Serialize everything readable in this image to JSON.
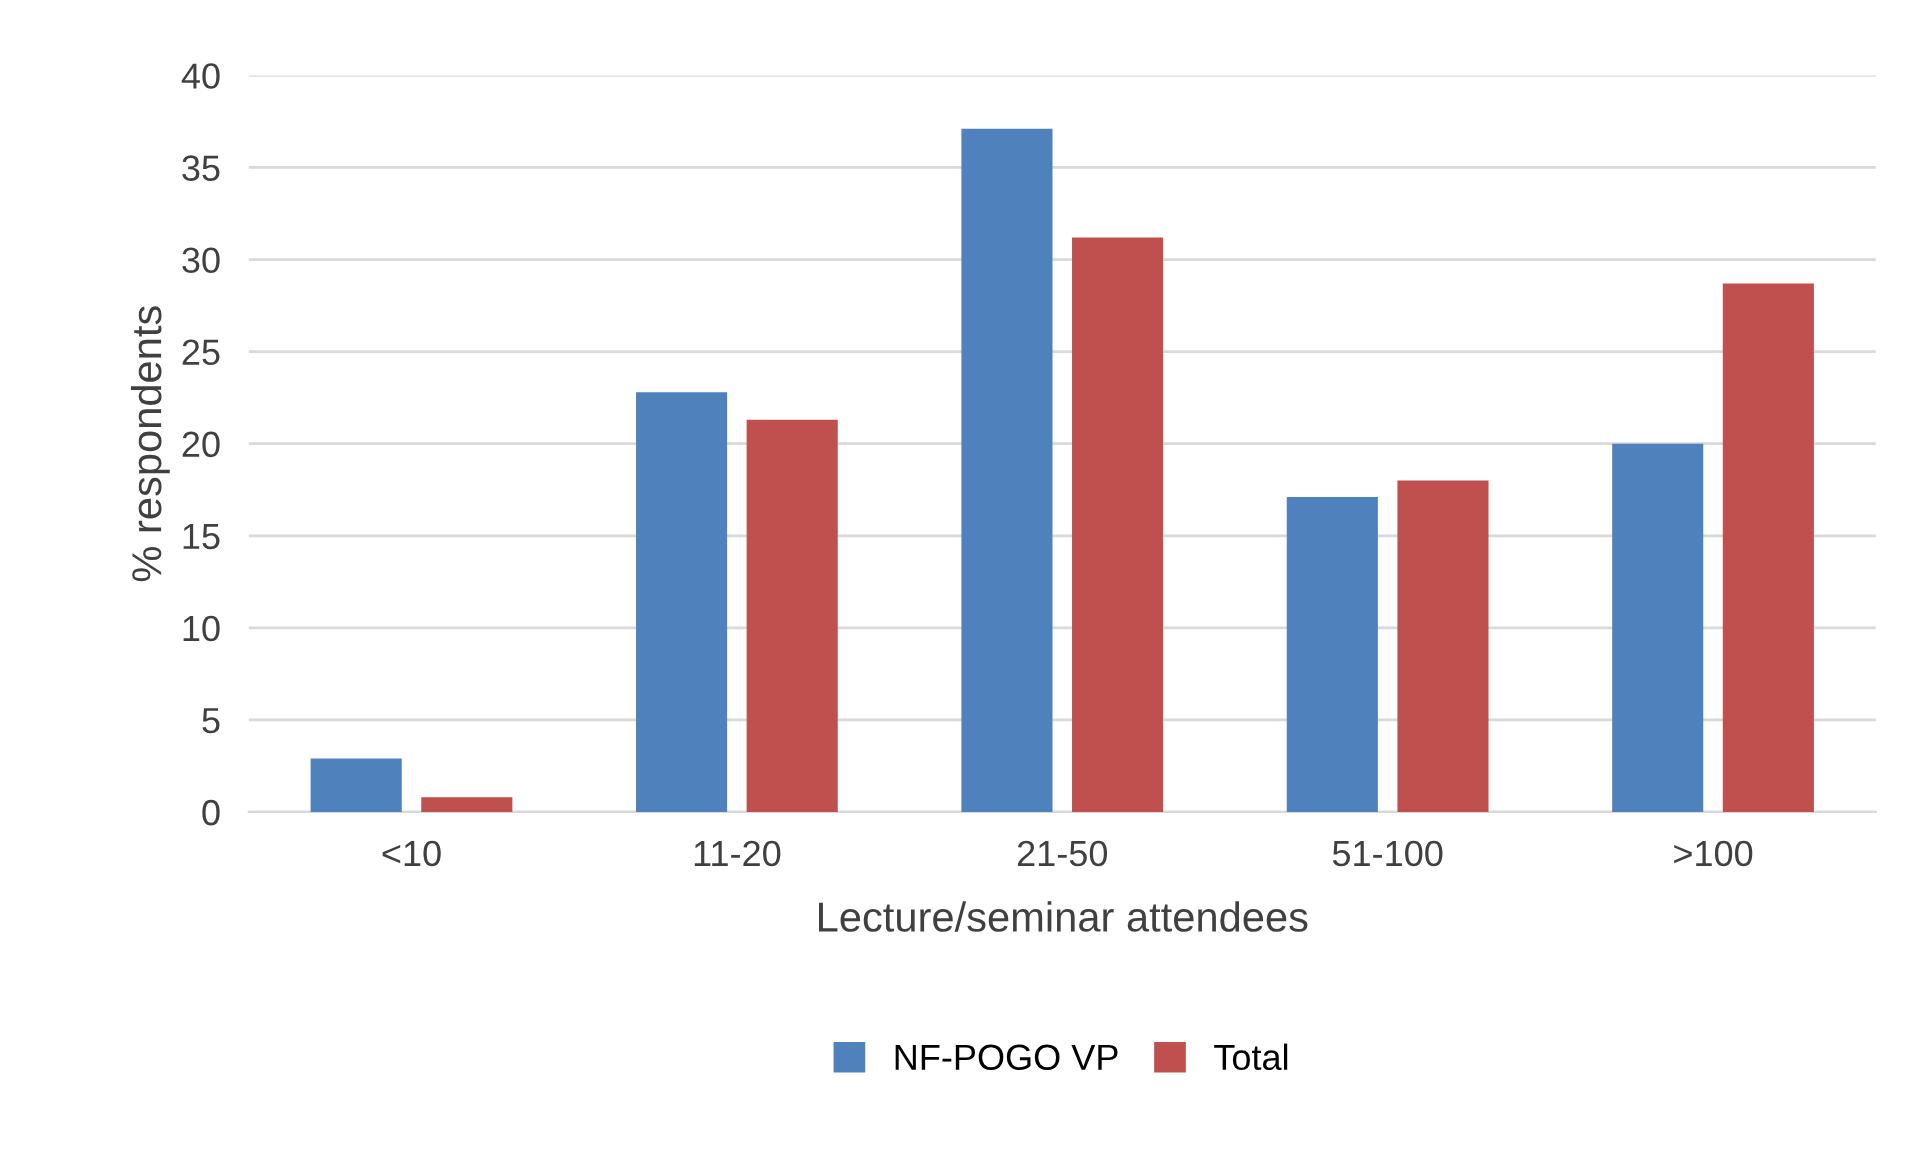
{
  "chart_data": {
    "type": "bar",
    "xlabel": "Lecture/seminar attendees",
    "ylabel": "% respondents",
    "categories": [
      "<10",
      "11-20",
      "21-50",
      "51-100",
      ">100"
    ],
    "series": [
      {
        "name": "NF-POGO VP",
        "color": "#4f81bd",
        "values": [
          2.9,
          22.8,
          37.1,
          17.1,
          20.0
        ]
      },
      {
        "name": "Total",
        "color": "#c0504d",
        "values": [
          0.8,
          21.3,
          31.2,
          18.0,
          28.7
        ]
      }
    ],
    "ylim": [
      0,
      40
    ],
    "yticks": [
      0,
      5,
      10,
      15,
      20,
      25,
      30,
      35,
      40
    ],
    "grid": "y",
    "legend": "bottom"
  }
}
